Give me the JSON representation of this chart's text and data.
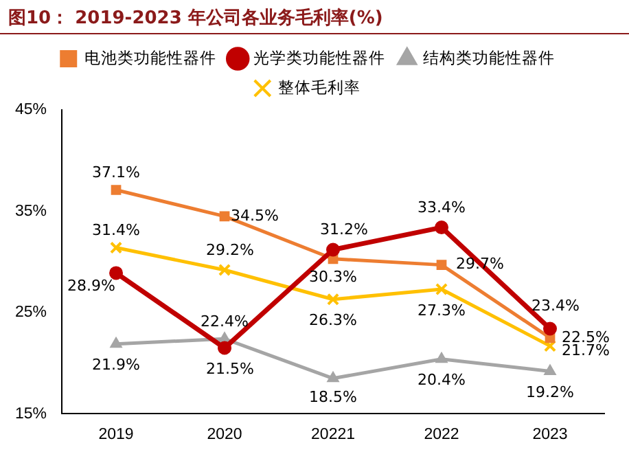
{
  "chart_data": {
    "type": "line",
    "title": "图10： 2019-2023 年公司各业务毛利率(%)",
    "categories": [
      "2019",
      "2020",
      "20221",
      "2022",
      "2023"
    ],
    "series": [
      {
        "name": "电池类功能性器件",
        "color": "#ed7d31",
        "marker": "square",
        "values": [
          37.1,
          34.5,
          30.3,
          29.7,
          22.5
        ],
        "value_labels": [
          "37.1%",
          "34.5%",
          "30.3%",
          "29.7%",
          "22.5%"
        ]
      },
      {
        "name": "光学类功能性器件",
        "color": "#c00000",
        "marker": "circle",
        "values": [
          28.9,
          21.5,
          31.2,
          33.4,
          23.4
        ],
        "value_labels": [
          "28.9%",
          "21.5%",
          "31.2%",
          "33.4%",
          "23.4%"
        ]
      },
      {
        "name": "结构类功能性器件",
        "color": "#a5a5a5",
        "marker": "triangle",
        "values": [
          21.9,
          22.4,
          18.5,
          20.4,
          19.2
        ],
        "value_labels": [
          "21.9%",
          "22.4%",
          "18.5%",
          "20.4%",
          "19.2%"
        ]
      },
      {
        "name": "整体毛利率",
        "color": "#ffc000",
        "marker": "cross",
        "values": [
          31.4,
          29.2,
          26.3,
          27.3,
          21.7
        ],
        "value_labels": [
          "31.4%",
          "29.2%",
          "26.3%",
          "27.3%",
          "21.7%"
        ]
      }
    ],
    "ylim": [
      15,
      45
    ],
    "yticks": [
      {
        "value": 15,
        "label": "15%"
      },
      {
        "value": 25,
        "label": "25%"
      },
      {
        "value": 35,
        "label": "35%"
      },
      {
        "value": 45,
        "label": "45%"
      }
    ],
    "grid": false,
    "legend": "top"
  }
}
